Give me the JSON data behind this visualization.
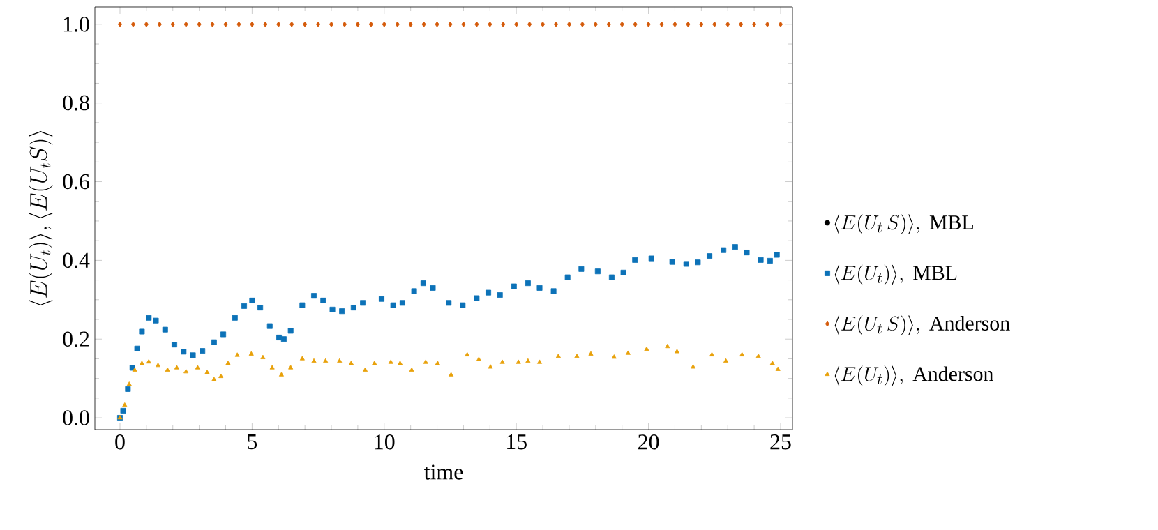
{
  "chart_data": {
    "type": "scatter",
    "xlabel": "time",
    "ylabel": "\\langle E(U_t)\\rangle, \\langle E(U_tS)\\rangle",
    "xlim": [
      -0.95,
      25.45
    ],
    "ylim": [
      -0.03,
      1.044
    ],
    "xticks": [
      0,
      5,
      10,
      15,
      20,
      25
    ],
    "yticks": [
      {
        "value": 0,
        "label": "0.0"
      },
      {
        "value": 0.2,
        "label": "0.2"
      },
      {
        "value": 0.4,
        "label": "0.4"
      },
      {
        "value": 0.6,
        "label": "0.6"
      },
      {
        "value": 0.8,
        "label": "0.8"
      },
      {
        "value": 1,
        "label": "1.0"
      }
    ],
    "legend": "right",
    "series": [
      {
        "name": "\\langle E(U_t\\,S)\\rangle,\\ \\mathrm{MBL}",
        "color": "#000000",
        "marker": "circle",
        "values": [
          null
        ]
      },
      {
        "name": "\\langle E(U_t)\\rangle,\\ \\mathrm{MBL}",
        "color": "#0c72b8",
        "marker": "square",
        "x": [
          0,
          0.12,
          0.3,
          0.47,
          0.65,
          0.83,
          1.09,
          1.36,
          1.71,
          2.06,
          2.41,
          2.76,
          3.12,
          3.56,
          3.91,
          4.35,
          4.7,
          5.0,
          5.31,
          5.67,
          6.02,
          6.2,
          6.46,
          6.9,
          7.34,
          7.69,
          8.04,
          8.4,
          8.84,
          9.19,
          9.9,
          10.34,
          10.69,
          11.13,
          11.48,
          11.84,
          12.44,
          12.97,
          13.5,
          13.94,
          14.38,
          14.91,
          15.44,
          15.88,
          16.41,
          16.94,
          17.46,
          18.08,
          18.61,
          19.05,
          19.49,
          20.11,
          20.9,
          21.43,
          21.87,
          22.31,
          22.84,
          23.28,
          23.72,
          24.25,
          24.6,
          24.86
        ],
        "values": [
          0,
          0.018,
          0.073,
          0.127,
          0.176,
          0.219,
          0.254,
          0.247,
          0.224,
          0.186,
          0.168,
          0.159,
          0.17,
          0.192,
          0.212,
          0.254,
          0.284,
          0.298,
          0.28,
          0.233,
          0.204,
          0.2,
          0.221,
          0.286,
          0.31,
          0.298,
          0.275,
          0.271,
          0.28,
          0.292,
          0.302,
          0.286,
          0.292,
          0.322,
          0.342,
          0.33,
          0.292,
          0.286,
          0.304,
          0.318,
          0.312,
          0.334,
          0.342,
          0.33,
          0.322,
          0.357,
          0.378,
          0.372,
          0.357,
          0.369,
          0.401,
          0.405,
          0.396,
          0.391,
          0.395,
          0.411,
          0.426,
          0.434,
          0.42,
          0.401,
          0.399,
          0.414
        ]
      },
      {
        "name": "\\langle E(U_t\\,S)\\rangle,\\ \\mathrm{Anderson}",
        "color": "#d45a0a",
        "marker": "diamond",
        "x": [
          0,
          0.5,
          1,
          1.5,
          2,
          2.5,
          3,
          3.5,
          4,
          4.5,
          5,
          5.5,
          6,
          6.5,
          7,
          7.5,
          8,
          8.5,
          9,
          9.5,
          10,
          10.5,
          11,
          11.5,
          12,
          12.5,
          13,
          13.5,
          14,
          14.5,
          15,
          15.5,
          16,
          16.5,
          17,
          17.5,
          18,
          18.5,
          19,
          19.5,
          20,
          20.5,
          21,
          21.5,
          22,
          22.5,
          23,
          23.5,
          24,
          24.5,
          25
        ],
        "values": [
          1,
          1,
          1,
          1,
          1,
          1,
          1,
          1,
          1,
          1,
          1,
          1,
          1,
          1,
          1,
          1,
          1,
          1,
          1,
          1,
          1,
          1,
          1,
          1,
          1,
          1,
          1,
          1,
          1,
          1,
          1,
          1,
          1,
          1,
          1,
          1,
          1,
          1,
          1,
          1,
          1,
          1,
          1,
          1,
          1,
          1,
          1,
          1,
          1,
          1,
          1
        ]
      },
      {
        "name": "\\langle E(U_t)\\rangle,\\ \\mathrm{Anderson}",
        "color": "#e8a10a",
        "marker": "triangle",
        "x": [
          0,
          0.18,
          0.35,
          0.56,
          0.83,
          1.09,
          1.44,
          1.8,
          2.15,
          2.5,
          2.94,
          3.3,
          3.56,
          3.82,
          4.09,
          4.44,
          4.97,
          5.41,
          5.76,
          6.11,
          6.46,
          6.9,
          7.34,
          7.78,
          8.31,
          8.75,
          9.28,
          9.63,
          10.25,
          10.6,
          11.04,
          11.57,
          12.02,
          12.53,
          13.14,
          13.58,
          14.02,
          14.47,
          15.08,
          15.44,
          15.88,
          16.59,
          17.29,
          17.82,
          18.7,
          19.23,
          19.93,
          20.72,
          21.08,
          21.69,
          22.4,
          22.93,
          23.54,
          24.16,
          24.69,
          24.9
        ],
        "values": [
          0,
          0.032,
          0.085,
          0.121,
          0.138,
          0.142,
          0.133,
          0.121,
          0.127,
          0.117,
          0.127,
          0.115,
          0.097,
          0.105,
          0.138,
          0.159,
          0.162,
          0.153,
          0.127,
          0.109,
          0.127,
          0.15,
          0.144,
          0.144,
          0.144,
          0.138,
          0.121,
          0.138,
          0.141,
          0.138,
          0.121,
          0.141,
          0.138,
          0.109,
          0.16,
          0.148,
          0.129,
          0.141,
          0.141,
          0.144,
          0.141,
          0.156,
          0.156,
          0.162,
          0.154,
          0.164,
          0.174,
          0.181,
          0.168,
          0.129,
          0.16,
          0.144,
          0.16,
          0.156,
          0.138,
          0.123
        ]
      }
    ]
  }
}
